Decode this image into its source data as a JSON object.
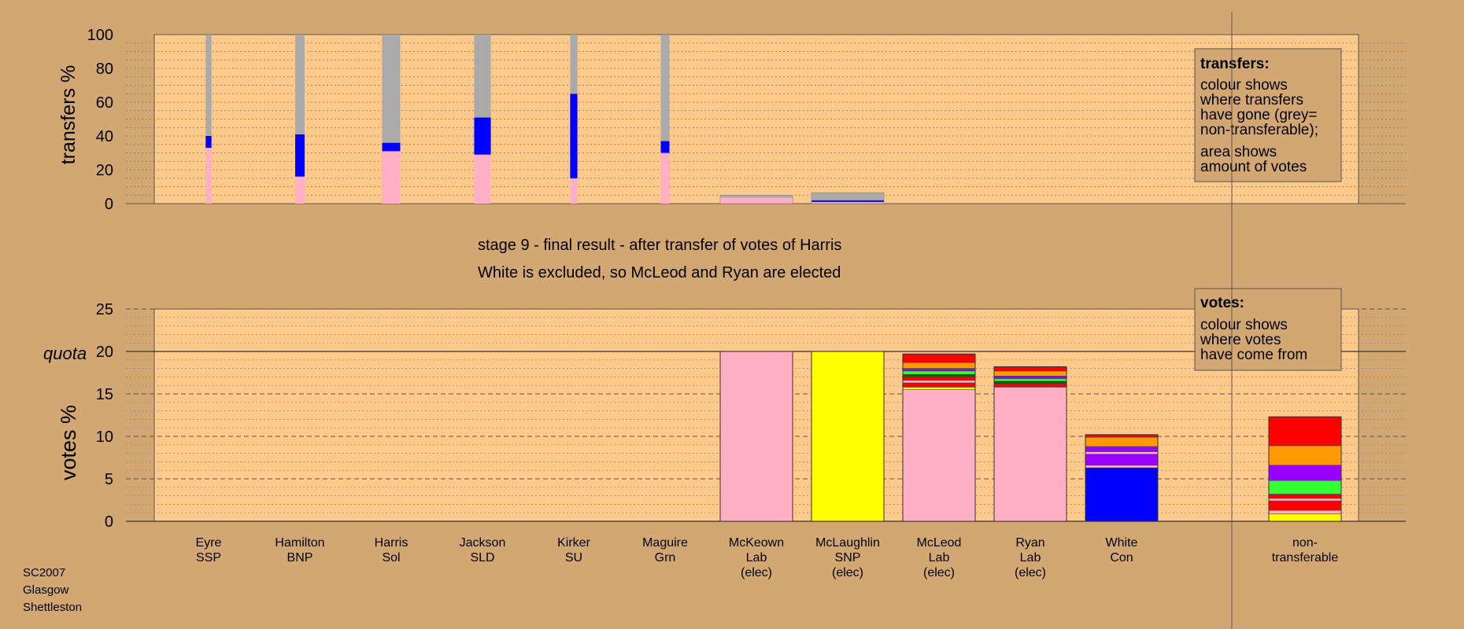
{
  "footer": [
    "SC2007",
    "Glasgow",
    "Shettleston"
  ],
  "colors": {
    "background": "#D2A772",
    "plot": "#FFC98A",
    "grey": "#AAAAAA",
    "Lab": "#FFB0C4",
    "SSP": "#0000FF",
    "SNP": "#FFFF00",
    "red": "#FF0000",
    "orange": "#FF9900",
    "purple": "#9900FF",
    "green": "#33FF33",
    "darkgreen": "#006600",
    "blue": "#0000FF"
  },
  "chart_data": [
    {
      "type": "bar",
      "name": "transfers",
      "ylabel": "transfers %",
      "ylim": [
        0,
        100
      ],
      "yticks": [
        0,
        20,
        40,
        60,
        80,
        100
      ],
      "grid": true,
      "legend": {
        "title": "transfers:",
        "lines": [
          "colour shows",
          "where transfers",
          "have gone (grey=",
          "non-transferable);"
        ],
        "lines2": [
          "area shows",
          "amount of votes"
        ],
        "placement": "top-right"
      },
      "bars": [
        {
          "candidate": "Eyre",
          "width_share": 0.08,
          "segments": [
            {
              "color": "Lab",
              "value": 33
            },
            {
              "color": "blue",
              "value": 7
            },
            {
              "color": "grey",
              "value": 60
            }
          ]
        },
        {
          "candidate": "Hamilton",
          "width_share": 0.13,
          "segments": [
            {
              "color": "Lab",
              "value": 16
            },
            {
              "color": "blue",
              "value": 25
            },
            {
              "color": "grey",
              "value": 59
            }
          ]
        },
        {
          "candidate": "Harris",
          "width_share": 0.25,
          "segments": [
            {
              "color": "Lab",
              "value": 31
            },
            {
              "color": "blue",
              "value": 5
            },
            {
              "color": "grey",
              "value": 64
            }
          ]
        },
        {
          "candidate": "Jackson",
          "width_share": 0.23,
          "segments": [
            {
              "color": "Lab",
              "value": 29
            },
            {
              "color": "blue",
              "value": 22
            },
            {
              "color": "grey",
              "value": 49
            }
          ]
        },
        {
          "candidate": "Kirker",
          "width_share": 0.1,
          "segments": [
            {
              "color": "Lab",
              "value": 15
            },
            {
              "color": "blue",
              "value": 50
            },
            {
              "color": "grey",
              "value": 35
            }
          ]
        },
        {
          "candidate": "Maguire",
          "width_share": 0.12,
          "segments": [
            {
              "color": "Lab",
              "value": 30
            },
            {
              "color": "blue",
              "value": 7
            },
            {
              "color": "grey",
              "value": 63
            }
          ]
        },
        {
          "candidate": "McKeown",
          "width_share": 1,
          "segments": [
            {
              "color": "Lab",
              "value": 3.5
            },
            {
              "color": "grey",
              "value": 1.5
            }
          ]
        },
        {
          "candidate": "McLaughlin",
          "width_share": 1,
          "segments": [
            {
              "color": "Lab",
              "value": 1
            },
            {
              "color": "blue",
              "value": 1
            },
            {
              "color": "grey",
              "value": 4.5
            }
          ]
        }
      ]
    },
    {
      "type": "bar",
      "name": "votes",
      "stage_title": "stage 9 - final result - after transfer of votes of Harris",
      "stage_subtitle": "White is excluded, so McLeod and Ryan are elected",
      "ylabel": "votes %",
      "quota_label": "quota",
      "quota": 20,
      "ylim": [
        0,
        25
      ],
      "yticks": [
        0,
        5,
        10,
        15,
        20,
        25
      ],
      "grid": true,
      "legend": {
        "title": "votes:",
        "lines": [
          "colour shows",
          "where votes",
          "have come from"
        ],
        "placement": "top-right"
      },
      "candidates": [
        {
          "name": "Eyre",
          "party": "SSP",
          "elected": "",
          "segments": []
        },
        {
          "name": "Hamilton",
          "party": "BNP",
          "elected": "",
          "segments": []
        },
        {
          "name": "Harris",
          "party": "Sol",
          "elected": "",
          "segments": []
        },
        {
          "name": "Jackson",
          "party": "SLD",
          "elected": "",
          "segments": []
        },
        {
          "name": "Kirker",
          "party": "SU",
          "elected": "",
          "segments": []
        },
        {
          "name": "Maguire",
          "party": "Grn",
          "elected": "",
          "segments": []
        },
        {
          "name": "McKeown",
          "party": "Lab",
          "elected": "(elec)",
          "segments": [
            {
              "color": "Lab",
              "value": 20
            }
          ]
        },
        {
          "name": "McLaughlin",
          "party": "SNP",
          "elected": "(elec)",
          "segments": [
            {
              "color": "SNP",
              "value": 20
            }
          ]
        },
        {
          "name": "McLeod",
          "party": "Lab",
          "elected": "(elec)",
          "segments": [
            {
              "color": "Lab",
              "value": 15.5
            },
            {
              "color": "SNP",
              "value": 0.3
            },
            {
              "color": "red",
              "value": 0.5
            },
            {
              "color": "Lab",
              "value": 0.3
            },
            {
              "color": "red",
              "value": 0.4
            },
            {
              "color": "darkgreen",
              "value": 0.3
            },
            {
              "color": "green",
              "value": 0.4
            },
            {
              "color": "purple",
              "value": 0.3
            },
            {
              "color": "orange",
              "value": 0.7
            },
            {
              "color": "red",
              "value": 1.0
            }
          ]
        },
        {
          "name": "Ryan",
          "party": "Lab",
          "elected": "(elec)",
          "segments": [
            {
              "color": "Lab",
              "value": 15.8
            },
            {
              "color": "red",
              "value": 0.4
            },
            {
              "color": "darkgreen",
              "value": 0.3
            },
            {
              "color": "green",
              "value": 0.3
            },
            {
              "color": "purple",
              "value": 0.3
            },
            {
              "color": "orange",
              "value": 0.6
            },
            {
              "color": "red",
              "value": 0.5
            }
          ]
        },
        {
          "name": "White",
          "party": "Con",
          "elected": "",
          "segments": [
            {
              "color": "blue",
              "value": 6.3
            },
            {
              "color": "Lab",
              "value": 0.3
            },
            {
              "color": "purple",
              "value": 1.3
            },
            {
              "color": "Lab",
              "value": 0.3
            },
            {
              "color": "purple",
              "value": 0.6
            },
            {
              "color": "orange",
              "value": 1.1
            },
            {
              "color": "red",
              "value": 0.3
            }
          ]
        }
      ],
      "nontransferable": {
        "label_lines": [
          "non-",
          "transferable"
        ],
        "segments": [
          {
            "color": "SNP",
            "value": 0.9
          },
          {
            "color": "Lab",
            "value": 0.4
          },
          {
            "color": "red",
            "value": 1.1
          },
          {
            "color": "Lab",
            "value": 0.3
          },
          {
            "color": "red",
            "value": 0.5
          },
          {
            "color": "green",
            "value": 1.6
          },
          {
            "color": "purple",
            "value": 1.8
          },
          {
            "color": "orange",
            "value": 2.3
          },
          {
            "color": "red",
            "value": 3.4
          }
        ]
      }
    }
  ]
}
